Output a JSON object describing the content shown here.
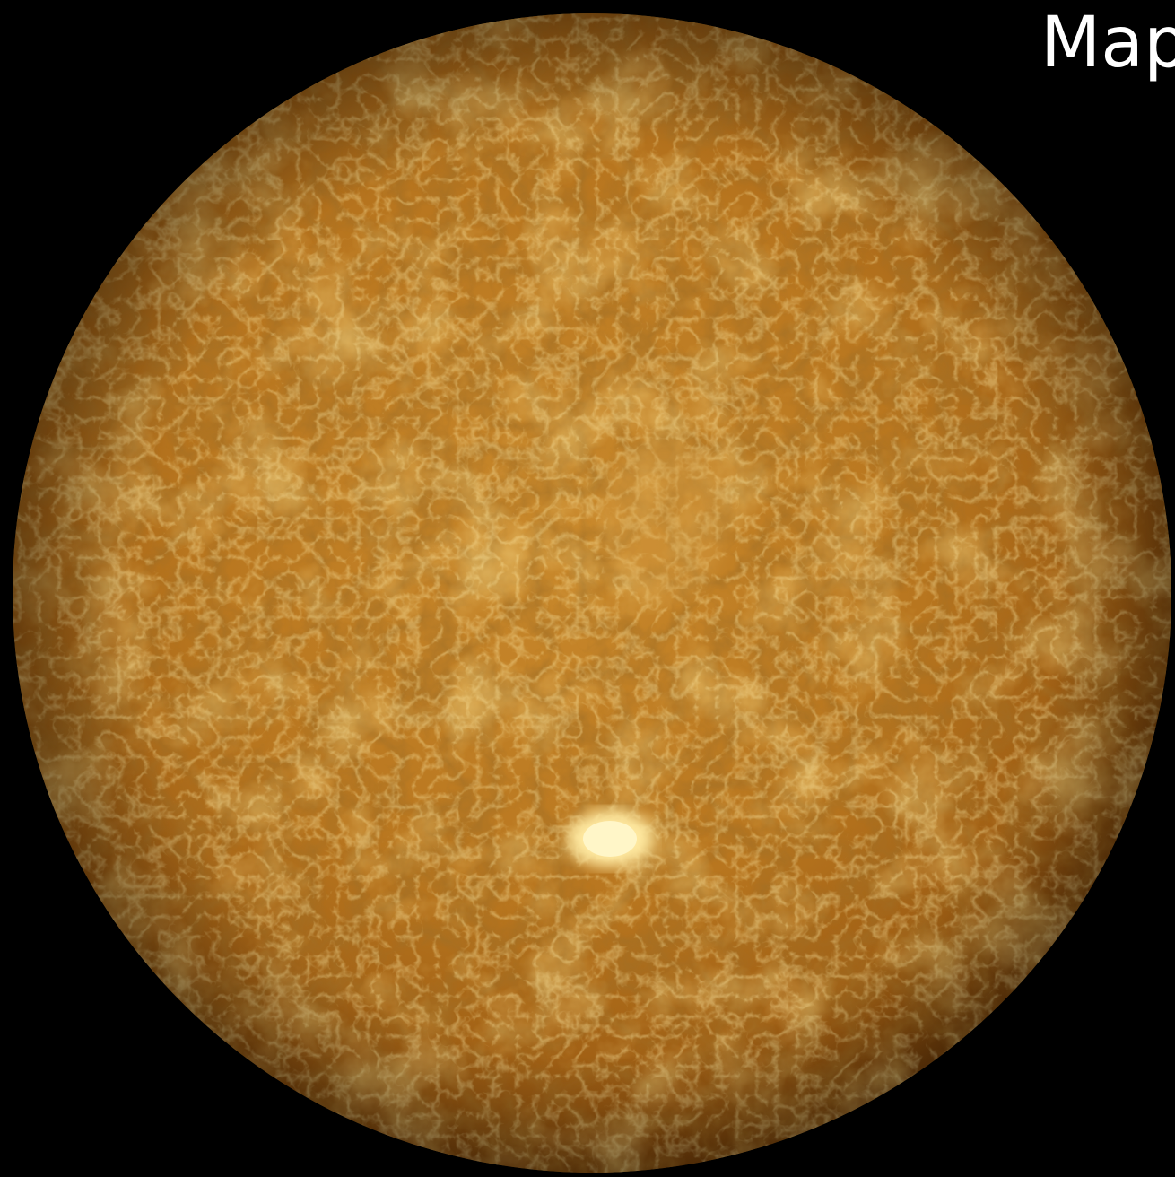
{
  "caption": "Map"
}
